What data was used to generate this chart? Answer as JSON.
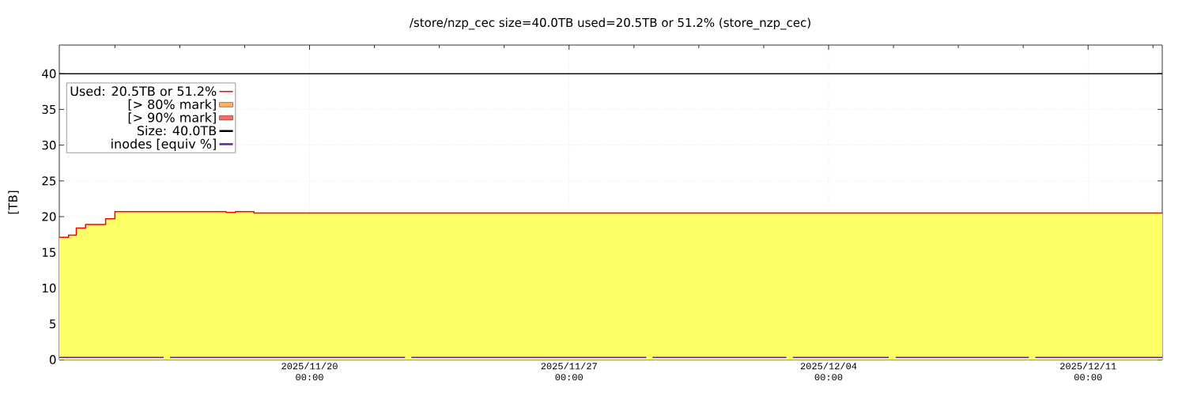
{
  "chart_data": {
    "type": "area",
    "title": "/store/nzp_cec size=40.0TB used=20.5TB or 51.2% (store_nzp_cec)",
    "ylabel": "[TB]",
    "xlim": [
      "2025-11-13T06:00",
      "2025-12-13T00:00"
    ],
    "ylim": [
      0,
      44
    ],
    "xticks": [
      {
        "value": "2025-11-14T18:00",
        "label": null
      },
      {
        "value": "2025-11-16T12:00",
        "label": null
      },
      {
        "value": "2025-11-18T06:00",
        "label": null
      },
      {
        "value": "2025-11-20T00:00",
        "label": "2025/11/20 00:00"
      },
      {
        "value": "2025-11-21T18:00",
        "label": null
      },
      {
        "value": "2025-11-23T12:00",
        "label": null
      },
      {
        "value": "2025-11-25T06:00",
        "label": null
      },
      {
        "value": "2025-11-27T00:00",
        "label": "2025/11/27 00:00"
      },
      {
        "value": "2025-11-28T18:00",
        "label": null
      },
      {
        "value": "2025-11-30T12:00",
        "label": null
      },
      {
        "value": "2025-12-02T06:00",
        "label": null
      },
      {
        "value": "2025-12-04T00:00",
        "label": "2025/12/04 00:00"
      },
      {
        "value": "2025-12-05T18:00",
        "label": null
      },
      {
        "value": "2025-12-07T12:00",
        "label": null
      },
      {
        "value": "2025-12-09T06:00",
        "label": null
      },
      {
        "value": "2025-12-11T00:00",
        "label": "2025/12/11 00:00"
      },
      {
        "value": "2025-12-12T18:00",
        "label": null
      }
    ],
    "yticks": [
      0,
      5,
      10,
      15,
      20,
      25,
      30,
      35,
      40
    ],
    "grid": true,
    "legend": "top left",
    "series": [
      {
        "name": "Size: 40.0TB",
        "type": "line",
        "color": "#000000",
        "x": [
          "2025-11-13T06:00",
          "2025-12-13T00:00"
        ],
        "values": [
          40,
          40
        ]
      },
      {
        "name": "inodes [equiv %]",
        "type": "line",
        "color": "#5b1fa8",
        "x": [
          "2025-11-13T06:00",
          "2025-11-16T01:30",
          "2025-11-16T03:30",
          "2025-11-16T05:40",
          "2025-11-22T13:50",
          "2025-11-22T16:00",
          "2025-11-22T17:55",
          "2025-11-29T02:00",
          "2025-11-29T04:00",
          "2025-11-29T06:00",
          "2025-12-02T20:40",
          "2025-12-02T22:40",
          "2025-12-03T00:50",
          "2025-12-05T15:00",
          "2025-12-05T17:00",
          "2025-12-05T19:25",
          "2025-12-09T09:40",
          "2025-12-09T11:40",
          "2025-12-09T13:50",
          "2025-12-13T00:00"
        ],
        "values": [
          0.3,
          0.3,
          null,
          0.3,
          0.3,
          null,
          0.3,
          0.3,
          null,
          0.3,
          0.3,
          null,
          0.3,
          0.3,
          null,
          0.3,
          0.3,
          null,
          0.3,
          0.3
        ]
      },
      {
        "name": "Used: 20.5TB or 51.2%",
        "color": "#ff0000",
        "x": [
          "2025-11-13T06:00",
          "2025-11-13T12:00",
          "2025-11-13T12:00",
          "2025-11-13T17:00",
          "2025-11-13T17:00",
          "2025-11-13T23:00",
          "2025-11-13T23:00",
          "2025-11-14T12:00",
          "2025-11-14T12:00",
          "2025-11-14T18:00",
          "2025-11-14T18:00",
          "2025-11-17T18:00",
          "2025-11-17T18:00",
          "2025-11-18T00:00",
          "2025-11-18T00:00",
          "2025-11-18T12:00",
          "2025-11-18T12:00",
          "2025-12-13T00:00"
        ],
        "values": [
          17.1,
          17.1,
          17.4,
          17.4,
          18.4,
          18.4,
          18.9,
          18.9,
          19.7,
          19.7,
          20.7,
          20.7,
          20.6,
          20.6,
          20.7,
          20.7,
          20.5,
          20.5
        ]
      },
      {
        "name": "[> 80% mark]",
        "color": "#ffb060"
      },
      {
        "name": "[> 90% mark]",
        "color": "#ff6666"
      }
    ]
  }
}
